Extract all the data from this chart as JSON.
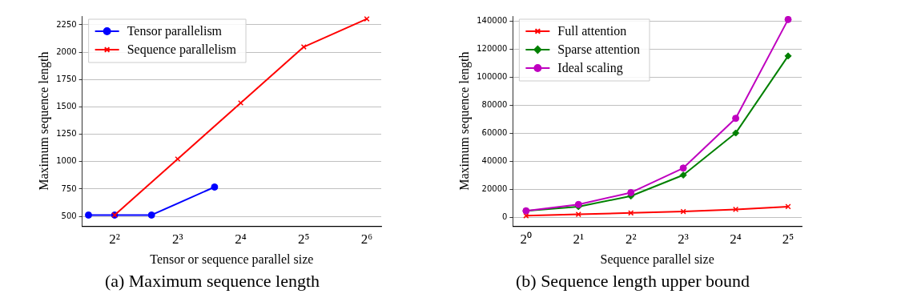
{
  "chart_data": [
    {
      "type": "line",
      "xlabel": "Tensor or sequence parallel size",
      "ylabel": "Maximum sequence length",
      "log": "x",
      "grid": "y",
      "legend": "top left",
      "xlim": [
        2.8,
        75
      ],
      "xticks": [
        {
          "value": 4,
          "label": "2²"
        },
        {
          "value": 8,
          "label": "2³"
        },
        {
          "value": 16,
          "label": "2⁴"
        },
        {
          "value": 32,
          "label": "2⁵"
        },
        {
          "value": 64,
          "label": "2⁶"
        }
      ],
      "ylim": [
        410,
        2330
      ],
      "yticks": [
        500,
        750,
        1000,
        1250,
        1500,
        1750,
        2000,
        2250
      ],
      "series": [
        {
          "name": "Tensor parallelism",
          "color": "#0000ff",
          "marker": "circle",
          "x": [
            3,
            4,
            6,
            12
          ],
          "values": [
            512,
            512,
            512,
            768
          ]
        },
        {
          "name": "Sequence parallelism",
          "color": "#ff0000",
          "marker": "cross",
          "x": [
            4,
            8,
            16,
            32,
            64
          ],
          "values": [
            512,
            1024,
            1536,
            2048,
            2304
          ]
        }
      ],
      "annotations": [
        "(a) Maximum sequence length"
      ]
    },
    {
      "type": "line",
      "xlabel": "Sequence parallel size",
      "ylabel": "Maximum sequence length",
      "log": "x",
      "grid": "y",
      "legend": "top left",
      "x": [
        1,
        2,
        4,
        8,
        16,
        32
      ],
      "xlim": [
        0.84,
        38.3
      ],
      "xticks": [
        {
          "value": 1,
          "label": "2⁰"
        },
        {
          "value": 2,
          "label": "2¹"
        },
        {
          "value": 4,
          "label": "2²"
        },
        {
          "value": 8,
          "label": "2³"
        },
        {
          "value": 16,
          "label": "2⁴"
        },
        {
          "value": 32,
          "label": "2⁵"
        }
      ],
      "ylim": [
        -6500,
        143500
      ],
      "yticks": [
        0,
        20000,
        40000,
        60000,
        80000,
        100000,
        120000,
        140000
      ],
      "series": [
        {
          "name": "Full attention",
          "color": "#ff0000",
          "marker": "cross",
          "values": [
            1000,
            2000,
            3000,
            4000,
            5500,
            7500
          ]
        },
        {
          "name": "Sparse attention",
          "color": "#008000",
          "marker": "diamond",
          "values": [
            4500,
            7500,
            15000,
            30000,
            60000,
            115000
          ]
        },
        {
          "name": "Ideal scaling",
          "color": "#bf00bf",
          "marker": "circle",
          "values": [
            4500,
            9000,
            17500,
            35000,
            70500,
            141000
          ]
        }
      ],
      "annotations": [
        "(b) Sequence length upper bound"
      ]
    }
  ]
}
